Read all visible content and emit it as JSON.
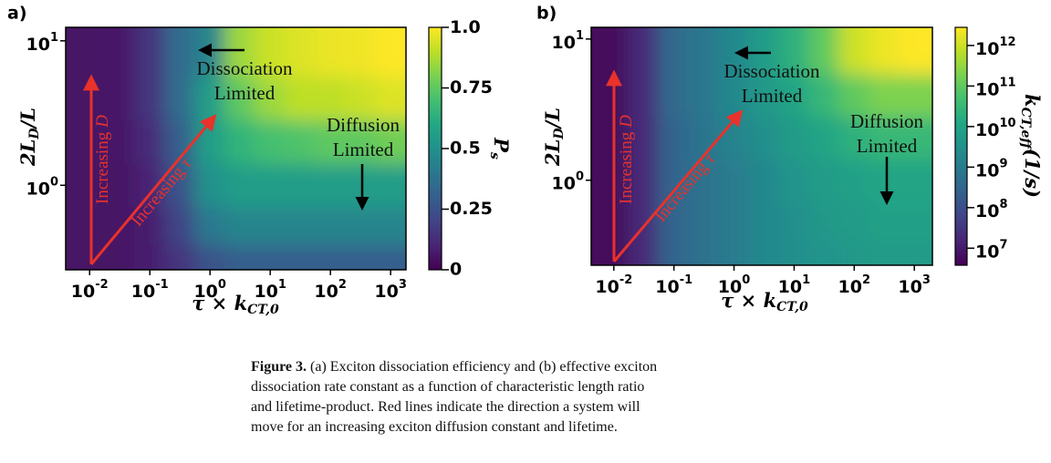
{
  "chart_data": [
    {
      "type": "heatmap",
      "panel_label": "a)",
      "colormap": "viridis",
      "x": [
        0.01,
        0.03,
        0.1,
        0.3,
        1,
        3,
        10,
        30,
        100,
        300,
        1000
      ],
      "y": [
        0.3,
        0.5,
        1,
        2,
        4,
        8
      ],
      "values": [
        [
          0.05,
          0.05,
          0.08,
          0.15,
          0.25,
          0.3,
          0.3,
          0.3,
          0.3,
          0.3,
          0.3
        ],
        [
          0.05,
          0.05,
          0.08,
          0.2,
          0.4,
          0.45,
          0.45,
          0.45,
          0.45,
          0.45,
          0.45
        ],
        [
          0.05,
          0.05,
          0.1,
          0.25,
          0.5,
          0.55,
          0.55,
          0.55,
          0.55,
          0.55,
          0.55
        ],
        [
          0.05,
          0.06,
          0.12,
          0.3,
          0.55,
          0.65,
          0.7,
          0.72,
          0.75,
          0.75,
          0.78
        ],
        [
          0.05,
          0.06,
          0.15,
          0.35,
          0.55,
          0.75,
          0.85,
          0.9,
          0.9,
          0.92,
          0.95
        ],
        [
          0.05,
          0.06,
          0.15,
          0.35,
          0.45,
          0.85,
          0.92,
          0.95,
          0.97,
          0.98,
          1.0
        ]
      ],
      "xscale": "log",
      "yscale": "log",
      "xlim": [
        0.004,
        1800
      ],
      "ylim": [
        0.26,
        12.4
      ],
      "xticks": [
        {
          "value": 0.01,
          "label": "10",
          "exponent": "-2"
        },
        {
          "value": 0.1,
          "label": "10",
          "exponent": "-1"
        },
        {
          "value": 1,
          "label": "10",
          "exponent": "0"
        },
        {
          "value": 10,
          "label": "10",
          "exponent": "1"
        },
        {
          "value": 100,
          "label": "10",
          "exponent": "2"
        },
        {
          "value": 1000,
          "label": "10",
          "exponent": "3"
        }
      ],
      "yticks": [
        {
          "value": 1,
          "label": "10",
          "exponent": "0"
        },
        {
          "value": 10,
          "label": "10",
          "exponent": "1"
        }
      ],
      "xlabel": {
        "main": "τ × k",
        "sub": "CT,0"
      },
      "ylabel": {
        "main": "2L",
        "sub": "D",
        "after": "/L"
      },
      "colorbar": {
        "label": {
          "main": "P",
          "sub": "s"
        },
        "scale": "linear",
        "lim": [
          0,
          1
        ],
        "ticks": [
          0,
          0.25,
          0.5,
          0.75,
          {
            "value": 1,
            "label": "1.0"
          }
        ]
      },
      "annotations": [
        {
          "lines": [
            "Dissociation",
            "Limited"
          ]
        },
        {
          "lines": [
            "Diffusion",
            "Limited"
          ]
        },
        {
          "text": "Increasing",
          "var": "D"
        },
        {
          "text": "Increasing",
          "var": "τ"
        }
      ]
    },
    {
      "type": "heatmap",
      "panel_label": "b)",
      "colormap": "viridis",
      "x": [
        0.01,
        0.03,
        0.1,
        0.3,
        1,
        3,
        10,
        30,
        100,
        300,
        1000
      ],
      "y": [
        0.3,
        0.5,
        1,
        2,
        4,
        8
      ],
      "values": [
        [
          5000000.0,
          20000000.0,
          300000000.0,
          600000000.0,
          1000000000.0,
          2000000000.0,
          3000000000.0,
          4000000000.0,
          5000000000.0,
          6000000000.0,
          6000000000.0
        ],
        [
          5000000.0,
          20000000.0,
          300000000.0,
          600000000.0,
          1000000000.0,
          2000000000.0,
          3000000000.0,
          5000000000.0,
          6000000000.0,
          8000000000.0,
          8000000000.0
        ],
        [
          5000000.0,
          20000000.0,
          300000000.0,
          600000000.0,
          1000000000.0,
          2000000000.0,
          4000000000.0,
          6000000000.0,
          8000000000.0,
          10000000000.0,
          10000000000.0
        ],
        [
          5000000.0,
          20000000.0,
          300000000.0,
          700000000.0,
          1500000000.0,
          3000000000.0,
          6000000000.0,
          10000000000.0,
          20000000000.0,
          30000000000.0,
          30000000000.0
        ],
        [
          5000000.0,
          20000000.0,
          400000000.0,
          800000000.0,
          2000000000.0,
          5000000000.0,
          10000000000.0,
          30000000000.0,
          100000000000.0,
          200000000000.0,
          200000000000.0
        ],
        [
          5000000.0,
          20000000.0,
          400000000.0,
          800000000.0,
          2000000000.0,
          6000000000.0,
          20000000000.0,
          100000000000.0,
          1000000000000.0,
          2000000000000.0,
          3000000000000.0
        ]
      ],
      "xscale": "log",
      "yscale": "log",
      "xlim": [
        0.0042,
        2000
      ],
      "ylim": [
        0.25,
        12.1
      ],
      "xticks": [
        {
          "value": 0.01,
          "label": "10",
          "exponent": "-2"
        },
        {
          "value": 0.1,
          "label": "10",
          "exponent": "-1"
        },
        {
          "value": 1,
          "label": "10",
          "exponent": "0"
        },
        {
          "value": 10,
          "label": "10",
          "exponent": "1"
        },
        {
          "value": 100,
          "label": "10",
          "exponent": "2"
        },
        {
          "value": 1000,
          "label": "10",
          "exponent": "3"
        }
      ],
      "yticks": [
        {
          "value": 1,
          "label": "10",
          "exponent": "0"
        },
        {
          "value": 10,
          "label": "10",
          "exponent": "1"
        }
      ],
      "xlabel": {
        "main": "τ × k",
        "sub": "CT,0"
      },
      "ylabel": {
        "main": "2L",
        "sub": "D",
        "after": "/L"
      },
      "colorbar": {
        "label": {
          "main": "k",
          "sub": "CT,eff",
          "after": "(1/s)"
        },
        "scale": "log",
        "lim": [
          3800000.0,
          2800000000000.0
        ],
        "ticks": [
          {
            "value": 10000000.0,
            "label": "10",
            "exponent": "7"
          },
          {
            "value": 100000000.0,
            "label": "10",
            "exponent": "8"
          },
          {
            "value": 1000000000.0,
            "label": "10",
            "exponent": "9"
          },
          {
            "value": 10000000000.0,
            "label": "10",
            "exponent": "10"
          },
          {
            "value": 100000000000.0,
            "label": "10",
            "exponent": "11"
          },
          {
            "value": 1000000000000.0,
            "label": "10",
            "exponent": "12"
          }
        ]
      },
      "annotations": [
        {
          "lines": [
            "Dissociation",
            "Limited"
          ]
        },
        {
          "lines": [
            "Diffusion",
            "Limited"
          ]
        },
        {
          "text": "Increasing",
          "var": "D"
        },
        {
          "text": "Increasing",
          "var": "τ"
        }
      ]
    }
  ],
  "caption": {
    "label": "Figure 3.",
    "lines": [
      "(a) Exciton dissociation efficiency and (b) effective exciton",
      "dissociation rate constant as a function of characteristic length ratio",
      "and lifetime-product. Red lines indicate the direction a system will",
      "move for an increasing exciton diffusion constant and lifetime."
    ]
  }
}
